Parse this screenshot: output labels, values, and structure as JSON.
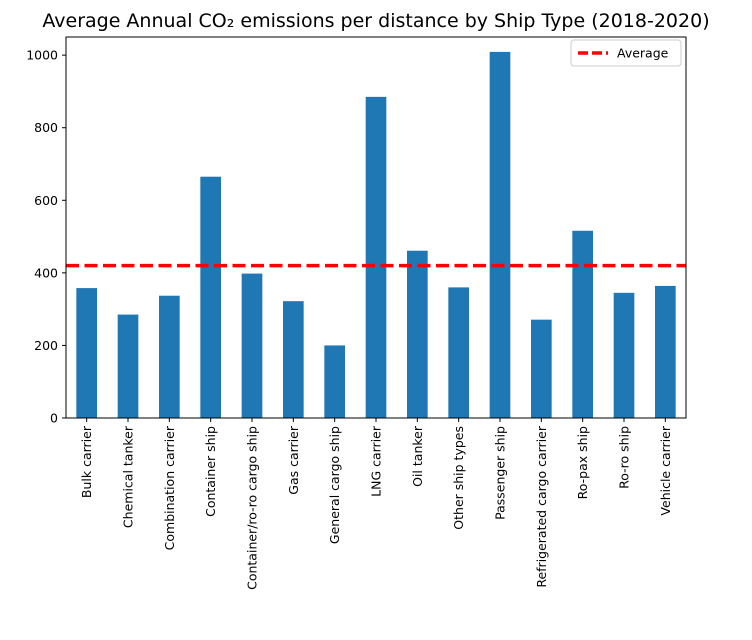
{
  "chart_data": {
    "type": "bar",
    "title": "Average Annual CO₂ emissions per distance by Ship Type (2018-2020)",
    "xlabel": "",
    "ylabel": "",
    "categories": [
      "Bulk carrier",
      "Chemical tanker",
      "Combination carrier",
      "Container ship",
      "Container/ro-ro cargo ship",
      "Gas carrier",
      "General cargo ship",
      "LNG carrier",
      "Oil tanker",
      "Other ship types",
      "Passenger ship",
      "Refrigerated cargo carrier",
      "Ro-pax ship",
      "Ro-ro ship",
      "Vehicle carrier"
    ],
    "values": [
      358,
      285,
      337,
      665,
      398,
      322,
      200,
      885,
      461,
      360,
      1009,
      271,
      516,
      345,
      364
    ],
    "ylim": [
      0,
      1050
    ],
    "yticks": [
      0,
      200,
      400,
      600,
      800,
      1000
    ],
    "bar_color": "#1f77b4",
    "average": {
      "label": "Average",
      "value": 420,
      "color": "#ff0000",
      "style": "dashed"
    },
    "legend_position": "top-right",
    "grid": false
  }
}
